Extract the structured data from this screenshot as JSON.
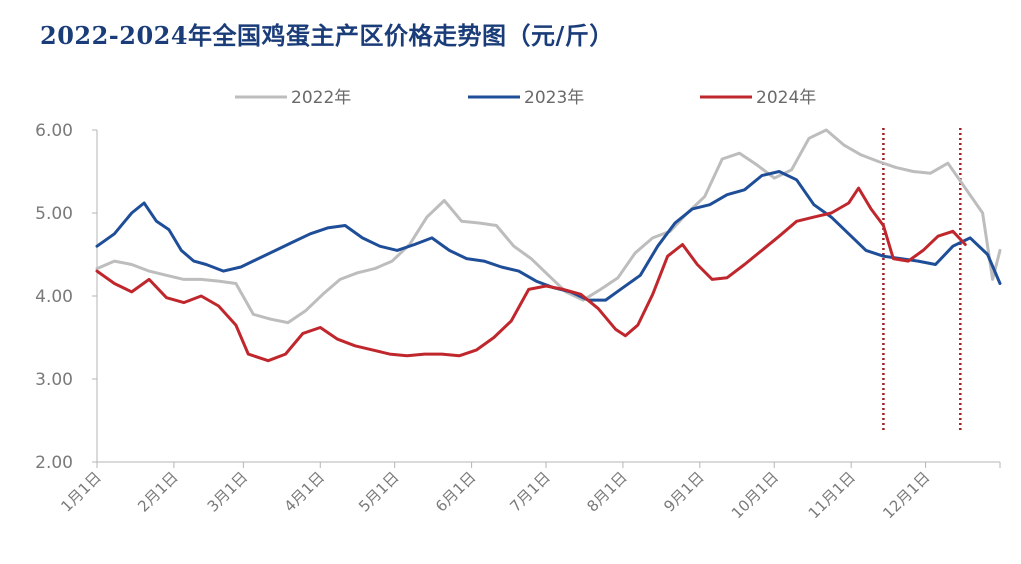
{
  "chart_data": {
    "type": "line",
    "title": "2022-2024年全国鸡蛋主产区价格走势图（元/斤）",
    "ylim": [
      2.0,
      6.0
    ],
    "yticks": [
      "2.00",
      "3.00",
      "4.00",
      "5.00",
      "6.00"
    ],
    "xticks": [
      "1月1日",
      "2月1日",
      "3月1日",
      "4月1日",
      "5月1日",
      "6月1日",
      "7月1日",
      "8月1日",
      "9月1日",
      "10月1日",
      "11月1日",
      "12月1日"
    ],
    "legend_position": "top",
    "grid": false,
    "x_unit": "day of year",
    "series": [
      {
        "name": "2022年",
        "color": "#bdbdbd",
        "points": [
          [
            1,
            4.33
          ],
          [
            8,
            4.42
          ],
          [
            15,
            4.38
          ],
          [
            22,
            4.3
          ],
          [
            29,
            4.25
          ],
          [
            36,
            4.2
          ],
          [
            43,
            4.2
          ],
          [
            50,
            4.18
          ],
          [
            57,
            4.15
          ],
          [
            64,
            3.78
          ],
          [
            71,
            3.72
          ],
          [
            78,
            3.68
          ],
          [
            85,
            3.82
          ],
          [
            92,
            4.02
          ],
          [
            99,
            4.2
          ],
          [
            106,
            4.28
          ],
          [
            113,
            4.33
          ],
          [
            120,
            4.42
          ],
          [
            127,
            4.62
          ],
          [
            134,
            4.95
          ],
          [
            141,
            5.15
          ],
          [
            148,
            4.9
          ],
          [
            155,
            4.88
          ],
          [
            162,
            4.85
          ],
          [
            169,
            4.6
          ],
          [
            176,
            4.45
          ],
          [
            183,
            4.25
          ],
          [
            190,
            4.05
          ],
          [
            197,
            3.95
          ],
          [
            204,
            4.08
          ],
          [
            211,
            4.22
          ],
          [
            218,
            4.52
          ],
          [
            225,
            4.7
          ],
          [
            232,
            4.78
          ],
          [
            239,
            5.0
          ],
          [
            246,
            5.2
          ],
          [
            253,
            5.65
          ],
          [
            260,
            5.72
          ],
          [
            267,
            5.58
          ],
          [
            274,
            5.42
          ],
          [
            281,
            5.52
          ],
          [
            288,
            5.9
          ],
          [
            295,
            6.0
          ],
          [
            302,
            5.82
          ],
          [
            309,
            5.7
          ],
          [
            316,
            5.62
          ],
          [
            323,
            5.55
          ],
          [
            330,
            5.5
          ],
          [
            337,
            5.48
          ],
          [
            344,
            5.6
          ],
          [
            351,
            5.3
          ],
          [
            358,
            5.0
          ],
          [
            362,
            4.2
          ],
          [
            365,
            4.55
          ]
        ]
      },
      {
        "name": "2023年",
        "color": "#1f4e99",
        "points": [
          [
            1,
            4.6
          ],
          [
            8,
            4.75
          ],
          [
            15,
            5.0
          ],
          [
            20,
            5.12
          ],
          [
            25,
            4.9
          ],
          [
            30,
            4.8
          ],
          [
            35,
            4.55
          ],
          [
            40,
            4.42
          ],
          [
            45,
            4.38
          ],
          [
            52,
            4.3
          ],
          [
            59,
            4.35
          ],
          [
            66,
            4.45
          ],
          [
            73,
            4.55
          ],
          [
            80,
            4.65
          ],
          [
            87,
            4.75
          ],
          [
            94,
            4.82
          ],
          [
            101,
            4.85
          ],
          [
            108,
            4.7
          ],
          [
            115,
            4.6
          ],
          [
            122,
            4.55
          ],
          [
            129,
            4.62
          ],
          [
            136,
            4.7
          ],
          [
            143,
            4.55
          ],
          [
            150,
            4.45
          ],
          [
            157,
            4.42
          ],
          [
            164,
            4.35
          ],
          [
            171,
            4.3
          ],
          [
            178,
            4.18
          ],
          [
            185,
            4.1
          ],
          [
            192,
            4.05
          ],
          [
            199,
            3.95
          ],
          [
            206,
            3.95
          ],
          [
            213,
            4.1
          ],
          [
            220,
            4.25
          ],
          [
            227,
            4.6
          ],
          [
            234,
            4.88
          ],
          [
            241,
            5.05
          ],
          [
            248,
            5.1
          ],
          [
            255,
            5.22
          ],
          [
            262,
            5.28
          ],
          [
            269,
            5.45
          ],
          [
            276,
            5.5
          ],
          [
            283,
            5.4
          ],
          [
            290,
            5.1
          ],
          [
            297,
            4.95
          ],
          [
            304,
            4.75
          ],
          [
            311,
            4.55
          ],
          [
            318,
            4.48
          ],
          [
            325,
            4.45
          ],
          [
            332,
            4.42
          ],
          [
            339,
            4.38
          ],
          [
            346,
            4.6
          ],
          [
            353,
            4.7
          ],
          [
            360,
            4.5
          ],
          [
            365,
            4.15
          ]
        ]
      },
      {
        "name": "2024年",
        "color": "#c0272d",
        "points": [
          [
            1,
            4.3
          ],
          [
            8,
            4.15
          ],
          [
            15,
            4.05
          ],
          [
            22,
            4.2
          ],
          [
            29,
            3.98
          ],
          [
            36,
            3.92
          ],
          [
            43,
            4.0
          ],
          [
            50,
            3.88
          ],
          [
            57,
            3.65
          ],
          [
            62,
            3.3
          ],
          [
            70,
            3.22
          ],
          [
            77,
            3.3
          ],
          [
            84,
            3.55
          ],
          [
            91,
            3.62
          ],
          [
            98,
            3.48
          ],
          [
            105,
            3.4
          ],
          [
            112,
            3.35
          ],
          [
            119,
            3.3
          ],
          [
            126,
            3.28
          ],
          [
            133,
            3.3
          ],
          [
            140,
            3.3
          ],
          [
            147,
            3.28
          ],
          [
            154,
            3.35
          ],
          [
            161,
            3.5
          ],
          [
            168,
            3.7
          ],
          [
            175,
            4.08
          ],
          [
            182,
            4.12
          ],
          [
            189,
            4.08
          ],
          [
            196,
            4.02
          ],
          [
            203,
            3.85
          ],
          [
            210,
            3.6
          ],
          [
            214,
            3.52
          ],
          [
            219,
            3.65
          ],
          [
            225,
            4.02
          ],
          [
            231,
            4.48
          ],
          [
            237,
            4.62
          ],
          [
            243,
            4.38
          ],
          [
            249,
            4.2
          ],
          [
            255,
            4.22
          ],
          [
            262,
            4.38
          ],
          [
            269,
            4.55
          ],
          [
            276,
            4.72
          ],
          [
            283,
            4.9
          ],
          [
            290,
            4.95
          ],
          [
            297,
            5.0
          ],
          [
            304,
            5.12
          ],
          [
            308,
            5.3
          ],
          [
            313,
            5.05
          ],
          [
            318,
            4.85
          ],
          [
            322,
            4.45
          ],
          [
            328,
            4.42
          ],
          [
            334,
            4.55
          ],
          [
            340,
            4.72
          ],
          [
            346,
            4.78
          ],
          [
            351,
            4.62
          ]
        ]
      }
    ],
    "markers": [
      {
        "kind": "vertical-dotted-line",
        "x": 318,
        "color": "#a01e24"
      },
      {
        "kind": "vertical-dotted-line",
        "x": 349,
        "color": "#a01e24"
      }
    ]
  }
}
